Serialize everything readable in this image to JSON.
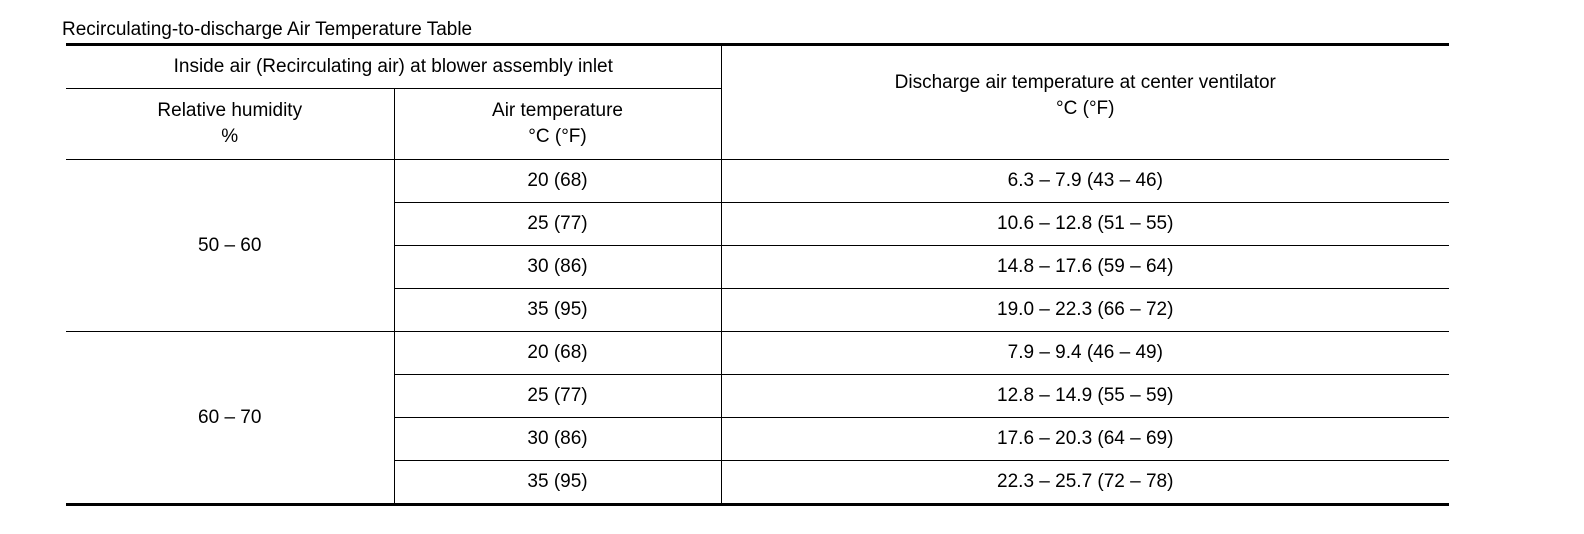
{
  "caption": "Recirculating-to-discharge Air Temperature Table",
  "headers": {
    "inlet_group": "Inside air (Recirculating air) at blower assembly inlet",
    "humidity_label": "Relative humidity",
    "humidity_unit": "%",
    "air_temp_label": "Air temperature",
    "air_temp_unit": "°C (°F)",
    "discharge_label": "Discharge air temperature at center ventilator",
    "discharge_unit": "°C (°F)"
  },
  "groups": [
    {
      "humidity": "50 – 60",
      "rows": [
        {
          "air_temp": "20 (68)",
          "discharge": "6.3 – 7.9 (43 – 46)"
        },
        {
          "air_temp": "25 (77)",
          "discharge": "10.6 – 12.8 (51 – 55)"
        },
        {
          "air_temp": "30 (86)",
          "discharge": "14.8 – 17.6 (59 – 64)"
        },
        {
          "air_temp": "35 (95)",
          "discharge": "19.0 – 22.3 (66 – 72)"
        }
      ]
    },
    {
      "humidity": "60 – 70",
      "rows": [
        {
          "air_temp": "20 (68)",
          "discharge": "7.9 – 9.4 (46 – 49)"
        },
        {
          "air_temp": "25 (77)",
          "discharge": "12.8 – 14.9 (55 – 59)"
        },
        {
          "air_temp": "30 (86)",
          "discharge": "17.6 – 20.3 (64 – 69)"
        },
        {
          "air_temp": "35 (95)",
          "discharge": "22.3 – 25.7 (72 – 78)"
        }
      ]
    }
  ]
}
